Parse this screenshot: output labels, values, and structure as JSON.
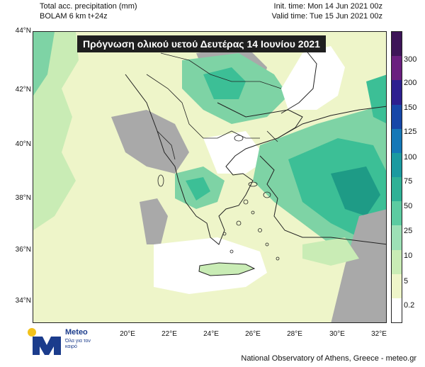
{
  "header": {
    "left_line1": "Total acc. precipitation (mm)",
    "left_line2": "BOLAM 6 km t+24z",
    "right_line1": "Init. time: Mon 14 Jun 2021 00z",
    "right_line2": "Valid time: Tue 15 Jun 2021 00z"
  },
  "map": {
    "title": "Πρόγνωση ολικού υετού Δευτέρας 14 Ιουνίου 2021",
    "lat_labels": [
      "44°N",
      "42°N",
      "40°N",
      "38°N",
      "36°N",
      "34°N"
    ],
    "lon_labels": [
      "20°E",
      "22°E",
      "24°E",
      "26°E",
      "28°E",
      "30°E",
      "32°E"
    ],
    "colors": {
      "land_dry": "#a9a9a9",
      "sea_dry": "#ffffff",
      "light_rain": "#eef5c9",
      "rain_5_10": "#c9ecb5",
      "rain_10_25": "#7ed3a5",
      "rain_25_50": "#3cbf96",
      "heavy": "#1e9b86"
    }
  },
  "colorbar": {
    "labels": [
      "300",
      "200",
      "150",
      "125",
      "100",
      "75",
      "50",
      "25",
      "10",
      "5",
      "0.2"
    ],
    "colors": [
      "#ffffff",
      "#eef5c9",
      "#c9ecb5",
      "#9de0b6",
      "#5ccba1",
      "#2fb196",
      "#1b9aa0",
      "#1578b7",
      "#1747a8",
      "#2d1f8f",
      "#6a1f7f",
      "#3d1558"
    ]
  },
  "logo": {
    "word": "Meteo",
    "tagline": "Όλα για τον καιρό"
  },
  "footer": {
    "text": "National Observatory of Athens, Greece - meteo.gr"
  }
}
